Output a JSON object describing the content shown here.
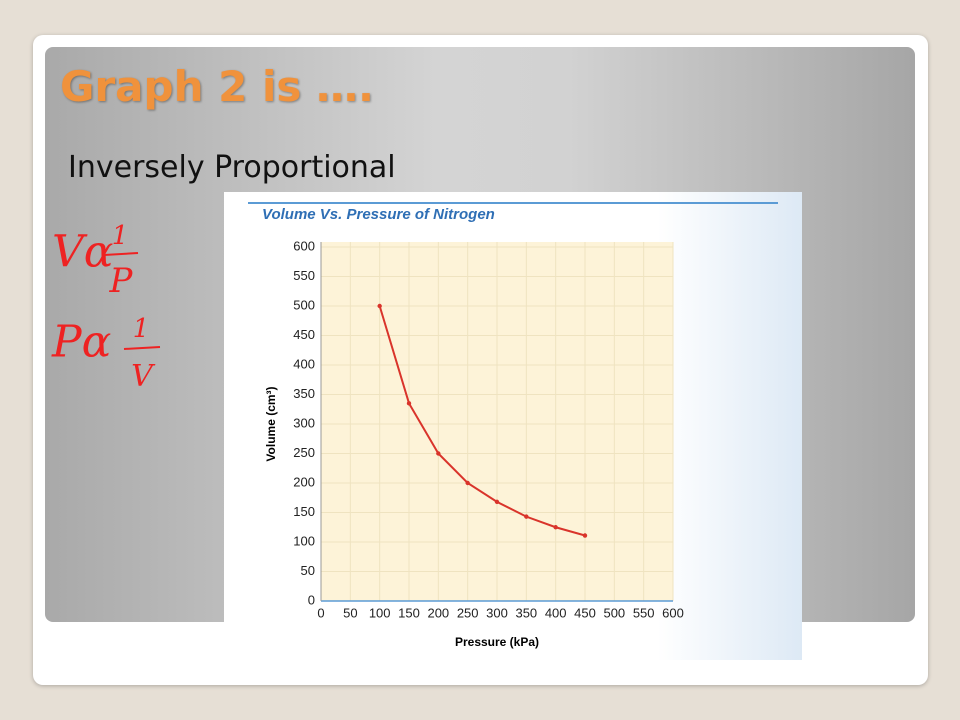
{
  "slide": {
    "title": "Graph 2 is ….",
    "subtitle": "Inversely Proportional"
  },
  "handwriting": [
    {
      "left": "Vα",
      "numerator": "1",
      "denominator": "P"
    },
    {
      "left": "Pα",
      "numerator": "1",
      "denominator": "V"
    }
  ],
  "chart_data": {
    "type": "line",
    "title": "Volume Vs. Pressure of Nitrogen",
    "xlabel": "Pressure (kPa)",
    "ylabel": "Volume (cm³)",
    "x": [
      100,
      150,
      200,
      250,
      300,
      350,
      400,
      450
    ],
    "series": [
      {
        "name": "Nitrogen",
        "color": "#d9342b",
        "values": [
          500,
          335,
          250,
          200,
          168,
          143,
          125,
          111
        ]
      }
    ],
    "xlim": [
      0,
      600
    ],
    "xticks": [
      0,
      50,
      100,
      150,
      200,
      250,
      300,
      350,
      400,
      450,
      500,
      550,
      600
    ],
    "ylim": [
      0,
      600
    ],
    "yticks": [
      0,
      50,
      100,
      150,
      200,
      250,
      300,
      350,
      400,
      450,
      500,
      550,
      600
    ],
    "grid": true
  }
}
